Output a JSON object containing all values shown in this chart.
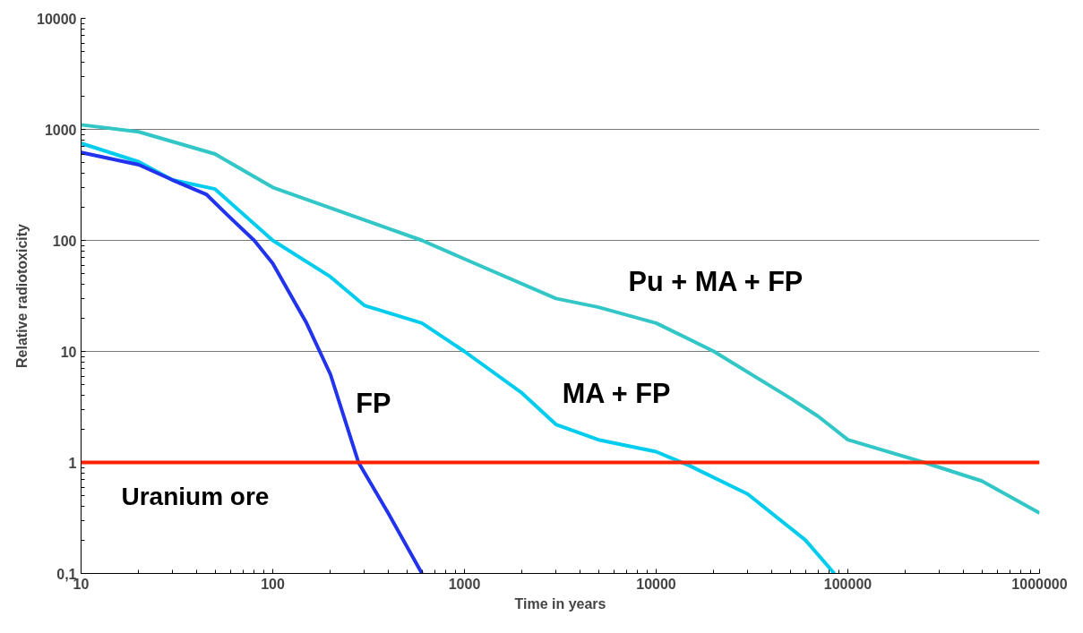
{
  "chart_data": {
    "type": "line",
    "xlabel": "Time in years",
    "ylabel": "Relative radiotoxicity",
    "log": "xy",
    "grid": "y",
    "marker": "none",
    "line_style": "solid",
    "xlim": [
      10,
      1000000
    ],
    "ylim": [
      0.1,
      10000
    ],
    "xticks": [
      10,
      100,
      1000,
      10000,
      100000,
      1000000
    ],
    "yticks": [
      {
        "value": 0.1,
        "label": "0,1"
      },
      1,
      10,
      100,
      1000,
      10000
    ],
    "series": [
      {
        "name": "Pu + MA + FP",
        "color": "#33c6c6",
        "x": [
          10,
          20,
          50,
          100,
          600,
          1000,
          3000,
          5000,
          10000,
          20000,
          50000,
          70000,
          100000,
          250000,
          500000,
          1000000
        ],
        "values": [
          1100,
          950,
          600,
          300,
          100,
          68,
          30,
          25,
          18,
          10,
          3.8,
          2.6,
          1.6,
          1,
          0.68,
          0.35
        ]
      },
      {
        "name": "MA + FP",
        "color": "#00ccee",
        "x": [
          10,
          20,
          30,
          50,
          100,
          200,
          300,
          600,
          1000,
          2000,
          3000,
          5000,
          10000,
          15000,
          30000,
          60000,
          85000
        ],
        "values": [
          750,
          510,
          350,
          290,
          100,
          47,
          26,
          18,
          10,
          4.2,
          2.2,
          1.6,
          1.25,
          0.93,
          0.52,
          0.2,
          0.1
        ]
      },
      {
        "name": "FP",
        "color": "#2233ee",
        "x": [
          10,
          20,
          30,
          45,
          60,
          80,
          100,
          150,
          200,
          280,
          400,
          600
        ],
        "values": [
          620,
          480,
          350,
          260,
          160,
          100,
          62,
          18,
          6.2,
          1,
          0.35,
          0.1
        ]
      }
    ],
    "ref_lines": [
      {
        "axis": "y",
        "value": 1,
        "label": "Uranium ore",
        "color": "#ff2200"
      }
    ]
  }
}
